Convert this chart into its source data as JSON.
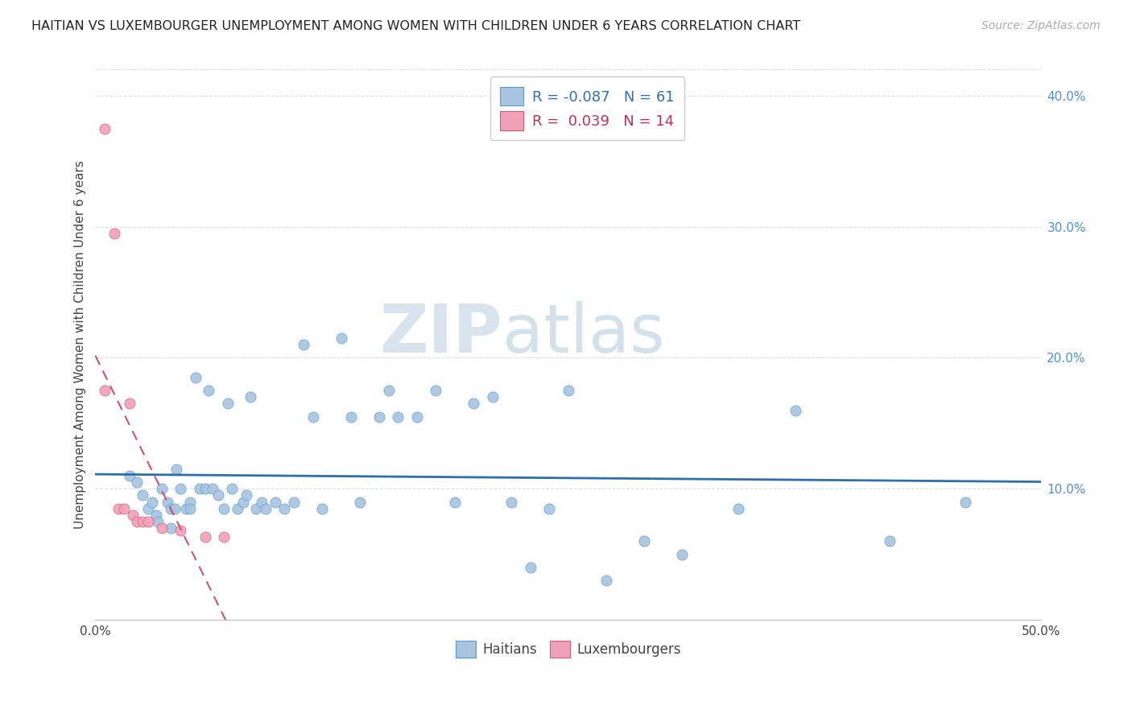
{
  "title": "HAITIAN VS LUXEMBOURGER UNEMPLOYMENT AMONG WOMEN WITH CHILDREN UNDER 6 YEARS CORRELATION CHART",
  "source": "Source: ZipAtlas.com",
  "ylabel": "Unemployment Among Women with Children Under 6 years",
  "xlim": [
    0.0,
    0.5
  ],
  "ylim": [
    0.0,
    0.42
  ],
  "xtick_positions": [
    0.0,
    0.1,
    0.2,
    0.3,
    0.4,
    0.5
  ],
  "xtick_labels": [
    "0.0%",
    "",
    "",
    "",
    "",
    "50.0%"
  ],
  "yticks_right": [
    0.1,
    0.2,
    0.3,
    0.4
  ],
  "ytick_labels_right": [
    "10.0%",
    "20.0%",
    "30.0%",
    "40.0%"
  ],
  "legend_label1": "Haitians",
  "legend_label2": "Luxembourgers",
  "legend_R1": "-0.087",
  "legend_N1": "61",
  "legend_R2": "0.039",
  "legend_N2": "14",
  "color_haitian": "#a8c4e0",
  "color_luxembourger": "#f0a0b8",
  "color_haitian_line": "#2c6fad",
  "color_luxembourger_line": "#d05070",
  "color_haitian_edge": "#5b9bd5",
  "color_luxembourger_edge": "#d06070",
  "watermark_zip": "ZIP",
  "watermark_atlas": "atlas",
  "grid_color": "#dddddd",
  "haitian_x": [
    0.018,
    0.022,
    0.025,
    0.028,
    0.03,
    0.032,
    0.033,
    0.035,
    0.038,
    0.04,
    0.04,
    0.042,
    0.043,
    0.045,
    0.048,
    0.05,
    0.05,
    0.053,
    0.055,
    0.058,
    0.06,
    0.062,
    0.065,
    0.068,
    0.07,
    0.072,
    0.075,
    0.078,
    0.08,
    0.082,
    0.085,
    0.088,
    0.09,
    0.095,
    0.1,
    0.105,
    0.11,
    0.115,
    0.12,
    0.13,
    0.135,
    0.14,
    0.15,
    0.155,
    0.16,
    0.17,
    0.18,
    0.19,
    0.2,
    0.21,
    0.22,
    0.23,
    0.24,
    0.25,
    0.27,
    0.29,
    0.31,
    0.34,
    0.37,
    0.42,
    0.46
  ],
  "haitian_y": [
    0.11,
    0.105,
    0.095,
    0.085,
    0.09,
    0.08,
    0.075,
    0.1,
    0.09,
    0.085,
    0.07,
    0.085,
    0.115,
    0.1,
    0.085,
    0.09,
    0.085,
    0.185,
    0.1,
    0.1,
    0.175,
    0.1,
    0.095,
    0.085,
    0.165,
    0.1,
    0.085,
    0.09,
    0.095,
    0.17,
    0.085,
    0.09,
    0.085,
    0.09,
    0.085,
    0.09,
    0.21,
    0.155,
    0.085,
    0.215,
    0.155,
    0.09,
    0.155,
    0.175,
    0.155,
    0.155,
    0.175,
    0.09,
    0.165,
    0.17,
    0.09,
    0.04,
    0.085,
    0.175,
    0.03,
    0.06,
    0.05,
    0.085,
    0.16,
    0.06,
    0.09
  ],
  "luxembourger_x": [
    0.005,
    0.005,
    0.01,
    0.012,
    0.015,
    0.018,
    0.02,
    0.022,
    0.025,
    0.028,
    0.035,
    0.045,
    0.058,
    0.068
  ],
  "luxembourger_y": [
    0.375,
    0.175,
    0.295,
    0.085,
    0.085,
    0.165,
    0.08,
    0.075,
    0.075,
    0.075,
    0.07,
    0.068,
    0.063,
    0.063
  ]
}
